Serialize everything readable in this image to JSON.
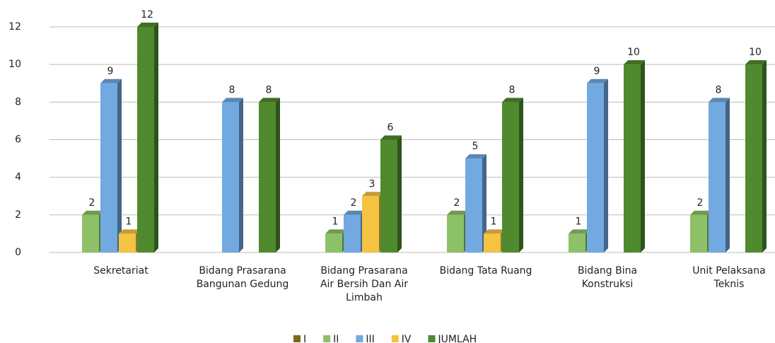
{
  "chart_data": {
    "type": "bar",
    "categories": [
      "Sekretariat",
      "Bidang Prasarana Bangunan Gedung",
      "Bidang Prasarana Air Bersih Dan Air Limbah",
      "Bidang Tata Ruang",
      "Bidang Bina Konstruksi",
      "Unit Pelaksana Teknis"
    ],
    "series": [
      {
        "name": "I",
        "color": "#7a6a1e",
        "values": [
          null,
          null,
          null,
          null,
          null,
          null
        ]
      },
      {
        "name": "II",
        "color": "#8cc168",
        "values": [
          2,
          null,
          1,
          2,
          1,
          2
        ]
      },
      {
        "name": "III",
        "color": "#72a9e0",
        "values": [
          9,
          8,
          2,
          5,
          9,
          8
        ]
      },
      {
        "name": "IV",
        "color": "#f5c342",
        "values": [
          1,
          null,
          3,
          1,
          null,
          null
        ]
      },
      {
        "name": "JUMLAH",
        "color": "#4f8a2e",
        "values": [
          12,
          8,
          6,
          8,
          10,
          10
        ]
      }
    ],
    "ylim": [
      0,
      12
    ],
    "yticks": [
      0,
      2,
      4,
      6,
      8,
      10,
      12
    ],
    "grid": true,
    "legend": "bottom"
  }
}
